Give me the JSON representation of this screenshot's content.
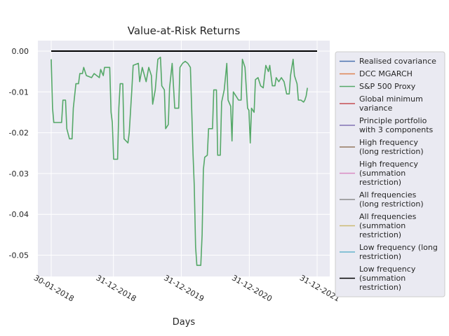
{
  "chart_data": {
    "type": "line",
    "title": "Value-at-Risk Returns",
    "xlabel": "Days",
    "ylabel": "",
    "x_ticks": [
      "30-01-2018",
      "31-12-2018",
      "31-12-2019",
      "31-12-2020",
      "31-12-2021"
    ],
    "y_ticks": [
      "0.00",
      "-0.01",
      "-0.02",
      "-0.03",
      "-0.04",
      "-0.05"
    ],
    "ylim": [
      -0.055,
      0.002
    ],
    "x_range": [
      "30-01-2018",
      "31-12-2021"
    ],
    "grid": true,
    "legend_position": "right-outside",
    "series": [
      {
        "name": "Realised covariance",
        "color": "#4c72b0",
        "values": []
      },
      {
        "name": "DCC MGARCH",
        "color": "#dd8452",
        "values": []
      },
      {
        "name": "S&P 500 Proxy",
        "color": "#55a868",
        "points": [
          [
            "30-01-2018",
            -0.002
          ],
          [
            "06-02-2018",
            -0.014
          ],
          [
            "13-02-2018",
            -0.0175
          ],
          [
            "27-03-2018",
            -0.0175
          ],
          [
            "03-04-2018",
            -0.012
          ],
          [
            "17-04-2018",
            -0.012
          ],
          [
            "24-04-2018",
            -0.019
          ],
          [
            "08-05-2018",
            -0.0215
          ],
          [
            "22-05-2018",
            -0.0215
          ],
          [
            "29-05-2018",
            -0.014
          ],
          [
            "12-06-2018",
            -0.008
          ],
          [
            "26-06-2018",
            -0.008
          ],
          [
            "03-07-2018",
            -0.0055
          ],
          [
            "17-07-2018",
            -0.0055
          ],
          [
            "24-07-2018",
            -0.004
          ],
          [
            "07-08-2018",
            -0.006
          ],
          [
            "04-09-2018",
            -0.0065
          ],
          [
            "18-09-2018",
            -0.0055
          ],
          [
            "02-10-2018",
            -0.006
          ],
          [
            "16-10-2018",
            -0.0065
          ],
          [
            "23-10-2018",
            -0.0045
          ],
          [
            "06-11-2018",
            -0.006
          ],
          [
            "13-11-2018",
            -0.004
          ],
          [
            "11-12-2018",
            -0.004
          ],
          [
            "18-12-2018",
            -0.015
          ],
          [
            "25-12-2018",
            -0.0175
          ],
          [
            "01-01-2019",
            -0.0265
          ],
          [
            "22-01-2019",
            -0.0265
          ],
          [
            "29-01-2019",
            -0.014
          ],
          [
            "05-02-2019",
            -0.008
          ],
          [
            "19-02-2019",
            -0.008
          ],
          [
            "26-02-2019",
            -0.0215
          ],
          [
            "19-03-2019",
            -0.0225
          ],
          [
            "26-03-2019",
            -0.02
          ],
          [
            "09-04-2019",
            -0.0095
          ],
          [
            "16-04-2019",
            -0.0035
          ],
          [
            "14-05-2019",
            -0.003
          ],
          [
            "21-05-2019",
            -0.0075
          ],
          [
            "04-06-2019",
            -0.004
          ],
          [
            "25-06-2019",
            -0.0075
          ],
          [
            "09-07-2019",
            -0.004
          ],
          [
            "23-07-2019",
            -0.006
          ],
          [
            "30-07-2019",
            -0.013
          ],
          [
            "13-08-2019",
            -0.0095
          ],
          [
            "27-08-2019",
            -0.002
          ],
          [
            "10-09-2019",
            -0.0015
          ],
          [
            "17-09-2019",
            -0.0085
          ],
          [
            "01-10-2019",
            -0.0095
          ],
          [
            "08-10-2019",
            -0.019
          ],
          [
            "22-10-2019",
            -0.018
          ],
          [
            "29-10-2019",
            -0.009
          ],
          [
            "12-11-2019",
            -0.003
          ],
          [
            "26-11-2019",
            -0.014
          ],
          [
            "17-12-2019",
            -0.014
          ],
          [
            "24-12-2019",
            -0.004
          ],
          [
            "07-01-2020",
            -0.003
          ],
          [
            "21-01-2020",
            -0.0025
          ],
          [
            "04-02-2020",
            -0.003
          ],
          [
            "18-02-2020",
            -0.004
          ],
          [
            "25-02-2020",
            -0.014
          ],
          [
            "03-03-2020",
            -0.025
          ],
          [
            "10-03-2020",
            -0.033
          ],
          [
            "17-03-2020",
            -0.048
          ],
          [
            "24-03-2020",
            -0.0525
          ],
          [
            "14-04-2020",
            -0.0525
          ],
          [
            "21-04-2020",
            -0.045
          ],
          [
            "28-04-2020",
            -0.029
          ],
          [
            "05-05-2020",
            -0.026
          ],
          [
            "19-05-2020",
            -0.0255
          ],
          [
            "26-05-2020",
            -0.019
          ],
          [
            "16-06-2020",
            -0.019
          ],
          [
            "23-06-2020",
            -0.0095
          ],
          [
            "07-07-2020",
            -0.0095
          ],
          [
            "14-07-2020",
            -0.0255
          ],
          [
            "28-07-2020",
            -0.0255
          ],
          [
            "04-08-2020",
            -0.0125
          ],
          [
            "18-08-2020",
            -0.0095
          ],
          [
            "01-09-2020",
            -0.003
          ],
          [
            "08-09-2020",
            -0.012
          ],
          [
            "22-09-2020",
            -0.0135
          ],
          [
            "29-09-2020",
            -0.022
          ],
          [
            "06-10-2020",
            -0.01
          ],
          [
            "20-10-2020",
            -0.011
          ],
          [
            "03-11-2020",
            -0.012
          ],
          [
            "17-11-2020",
            -0.012
          ],
          [
            "24-11-2020",
            -0.002
          ],
          [
            "08-12-2020",
            -0.004
          ],
          [
            "22-12-2020",
            -0.014
          ],
          [
            "29-12-2020",
            -0.0145
          ],
          [
            "05-01-2021",
            -0.0225
          ],
          [
            "12-01-2021",
            -0.014
          ],
          [
            "26-01-2021",
            -0.015
          ],
          [
            "02-02-2021",
            -0.007
          ],
          [
            "16-02-2021",
            -0.0065
          ],
          [
            "02-03-2021",
            -0.0085
          ],
          [
            "16-03-2021",
            -0.009
          ],
          [
            "30-03-2021",
            -0.0035
          ],
          [
            "13-04-2021",
            -0.005
          ],
          [
            "20-04-2021",
            -0.0035
          ],
          [
            "04-05-2021",
            -0.0085
          ],
          [
            "18-05-2021",
            -0.0085
          ],
          [
            "25-05-2021",
            -0.0065
          ],
          [
            "08-06-2021",
            -0.0075
          ],
          [
            "22-06-2021",
            -0.0065
          ],
          [
            "06-07-2021",
            -0.0075
          ],
          [
            "20-07-2021",
            -0.0105
          ],
          [
            "03-08-2021",
            -0.0105
          ],
          [
            "10-08-2021",
            -0.006
          ],
          [
            "24-08-2021",
            -0.002
          ],
          [
            "31-08-2021",
            -0.006
          ],
          [
            "14-09-2021",
            -0.008
          ],
          [
            "21-09-2021",
            -0.012
          ],
          [
            "05-10-2021",
            -0.012
          ],
          [
            "19-10-2021",
            -0.0125
          ],
          [
            "26-10-2021",
            -0.012
          ],
          [
            "02-11-2021",
            -0.011
          ],
          [
            "09-11-2021",
            -0.009
          ]
        ]
      },
      {
        "name": "Global minimum variance",
        "color": "#c44e52",
        "values": []
      },
      {
        "name": "Principle portfolio with 3 components",
        "color": "#8172b3",
        "values": []
      },
      {
        "name": "High frequency (long restriction)",
        "color": "#937860",
        "values": []
      },
      {
        "name": "High frequency (summation restriction)",
        "color": "#da8bc3",
        "values": []
      },
      {
        "name": "All frequencies (long restriction)",
        "color": "#8c8c8c",
        "values": []
      },
      {
        "name": "All frequencies (summation restriction)",
        "color": "#ccb974",
        "values": []
      },
      {
        "name": "Low frequency (long restriction)",
        "color": "#64b5cd",
        "values": []
      },
      {
        "name": "Low frequency (summation restriction)",
        "color": "#000000",
        "points": [
          [
            "30-01-2018",
            0.0
          ],
          [
            "31-12-2021",
            0.0
          ]
        ]
      }
    ],
    "legend_entries": [
      [
        "Realised covariance"
      ],
      [
        "DCC MGARCH"
      ],
      [
        "S&P 500 Proxy"
      ],
      [
        "Global minimum",
        "variance"
      ],
      [
        "Principle portfolio",
        "with 3 components"
      ],
      [
        "High frequency",
        "(long restriction)"
      ],
      [
        "High frequency",
        "(summation",
        "restriction)"
      ],
      [
        "All frequencies",
        "(long restriction)"
      ],
      [
        "All frequencies",
        "(summation",
        "restriction)"
      ],
      [
        "Low frequency (long",
        "restriction)"
      ],
      [
        "Low frequency",
        "(summation",
        "restriction)"
      ]
    ],
    "colors": {
      "plot_background": "#eaeaf2",
      "grid": "#ffffff",
      "text": "#262626"
    }
  }
}
